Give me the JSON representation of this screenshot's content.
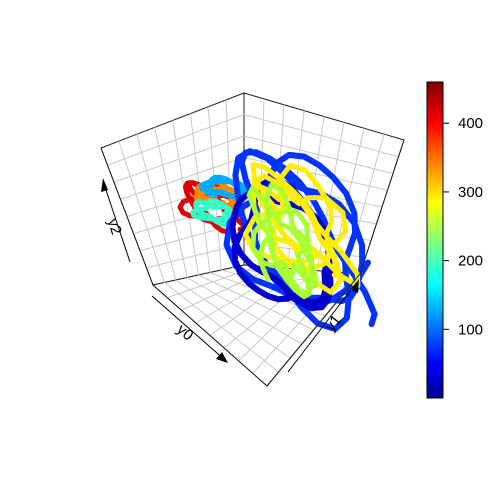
{
  "chart_data": {
    "type": "line",
    "projection": "3d",
    "title": "",
    "axes": {
      "x_label": "y0",
      "y_label": "y1",
      "z_label": "y2",
      "tick_labels_shown": false,
      "grid": true,
      "box": "full"
    },
    "color_scale": {
      "palette": "jet",
      "range": [
        0,
        460
      ],
      "ticks": [
        100,
        200,
        300,
        400
      ],
      "tick_labels": [
        "100",
        "200",
        "300",
        "400"
      ]
    },
    "series": [
      {
        "color_value": 10,
        "color": "#0000cc"
      },
      {
        "color_value": 60,
        "color": "#0033ff"
      },
      {
        "color_value": 120,
        "color": "#00aaff"
      },
      {
        "color_value": 180,
        "color": "#33ffcc"
      },
      {
        "color_value": 240,
        "color": "#aaff33"
      },
      {
        "color_value": 290,
        "color": "#ffee00"
      },
      {
        "color_value": 340,
        "color": "#ff8800"
      },
      {
        "color_value": 430,
        "color": "#dd0000"
      }
    ]
  }
}
